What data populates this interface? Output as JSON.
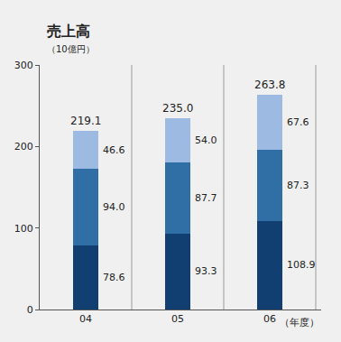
{
  "chart_data": {
    "type": "bar",
    "title": "売上高",
    "subtitle": "（10億円）",
    "x_label": "（年度）",
    "categories": [
      "04",
      "05",
      "06"
    ],
    "series": [
      {
        "color": "#123f72",
        "values": [
          78.6,
          93.3,
          108.9
        ],
        "value_labels": [
          "78.6",
          "93.3",
          "108.9"
        ]
      },
      {
        "color": "#2f6fa6",
        "values": [
          94.0,
          87.7,
          87.3
        ],
        "value_labels": [
          "94.0",
          "87.7",
          "87.3"
        ]
      },
      {
        "color": "#9dbbe2",
        "values": [
          46.6,
          54.0,
          67.6
        ],
        "value_labels": [
          "46.6",
          "54.0",
          "67.6"
        ]
      }
    ],
    "totals": [
      219.1,
      235.0,
      263.8
    ],
    "total_labels": [
      "219.1",
      "235.0",
      "263.8"
    ],
    "stacked": true,
    "data_labels": true,
    "ylim": [
      0,
      300
    ],
    "yticks": [
      0,
      100,
      200,
      300
    ],
    "grid": true
  }
}
